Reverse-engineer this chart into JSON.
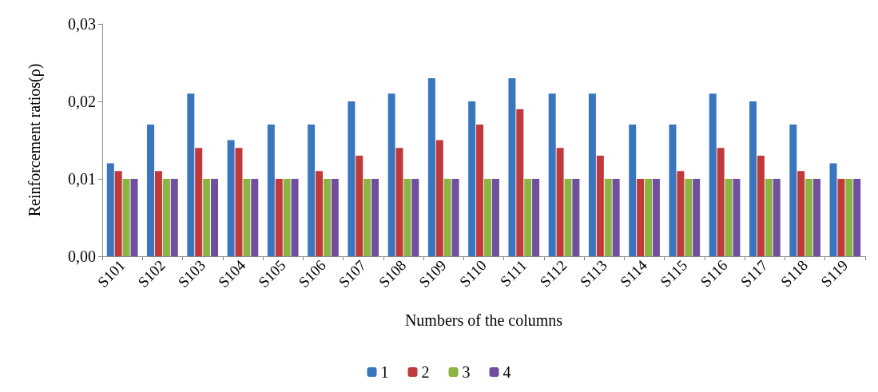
{
  "chart_data": {
    "type": "bar",
    "xlabel": "Numbers of the columns",
    "ylabel": "Reinforcement ratios(ρ)",
    "categories": [
      "S101",
      "S102",
      "S103",
      "S104",
      "S105",
      "S106",
      "S107",
      "S108",
      "S109",
      "S110",
      "S111",
      "S112",
      "S113",
      "S114",
      "S115",
      "S116",
      "S117",
      "S118",
      "S119"
    ],
    "series": [
      {
        "name": "1",
        "color": "#3a76bd",
        "values": [
          0.012,
          0.017,
          0.021,
          0.015,
          0.017,
          0.017,
          0.02,
          0.021,
          0.023,
          0.02,
          0.023,
          0.021,
          0.021,
          0.017,
          0.017,
          0.021,
          0.02,
          0.017,
          0.012
        ]
      },
      {
        "name": "2",
        "color": "#c0393b",
        "values": [
          0.011,
          0.011,
          0.014,
          0.014,
          0.01,
          0.011,
          0.013,
          0.014,
          0.015,
          0.017,
          0.019,
          0.014,
          0.013,
          0.01,
          0.011,
          0.014,
          0.013,
          0.011,
          0.01
        ]
      },
      {
        "name": "3",
        "color": "#8cb443",
        "values": [
          0.01,
          0.01,
          0.01,
          0.01,
          0.01,
          0.01,
          0.01,
          0.01,
          0.01,
          0.01,
          0.01,
          0.01,
          0.01,
          0.01,
          0.01,
          0.01,
          0.01,
          0.01,
          0.01
        ]
      },
      {
        "name": "4",
        "color": "#6f4f9e",
        "values": [
          0.01,
          0.01,
          0.01,
          0.01,
          0.01,
          0.01,
          0.01,
          0.01,
          0.01,
          0.01,
          0.01,
          0.01,
          0.01,
          0.01,
          0.01,
          0.01,
          0.01,
          0.01,
          0.01
        ]
      }
    ],
    "ylim": [
      0,
      0.03
    ],
    "yticks": [
      {
        "value": 0,
        "label": "0,00"
      },
      {
        "value": 0.01,
        "label": "0,01"
      },
      {
        "value": 0.02,
        "label": "0,02"
      },
      {
        "value": 0.03,
        "label": "0,03"
      }
    ],
    "grid": false,
    "legend": "bottom"
  }
}
